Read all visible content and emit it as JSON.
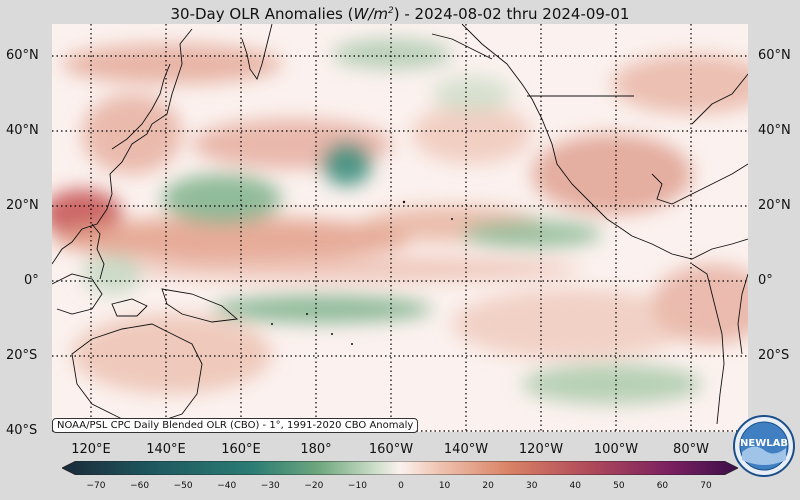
{
  "title": "30-Day OLR Anomalies (W/m²) - 2024-08-02 thru 2024-09-01",
  "lat_labels": [
    "60°N",
    "40°N",
    "20°N",
    "0°",
    "20°S",
    "40°S"
  ],
  "lon_labels": [
    "120°E",
    "140°E",
    "160°E",
    "180°",
    "160°W",
    "140°W",
    "120°W",
    "100°W",
    "80°W"
  ],
  "source": "NOAA/PSL CPC Daily Blended OLR (CBO) - 1°, 1991-2020 CBO Anomaly",
  "colorbar": {
    "ticks": [
      "−70",
      "−60",
      "−50",
      "−40",
      "−30",
      "−20",
      "−10",
      "0",
      "10",
      "20",
      "30",
      "40",
      "50",
      "60",
      "70"
    ],
    "colors": {
      "min": "#1a2a3a",
      "neg_strong": "#2a7c74",
      "neg_mid": "#6fa77e",
      "neg_weak": "#c9dcc6",
      "zero": "#fbf1ee",
      "pos_weak": "#efc2b0",
      "pos_mid": "#d98366",
      "pos_strong": "#b04a5a",
      "max": "#3b0f4a"
    }
  },
  "logo": {
    "text": "NEWLAB",
    "icon": "noaa-lab-logo-icon"
  }
}
